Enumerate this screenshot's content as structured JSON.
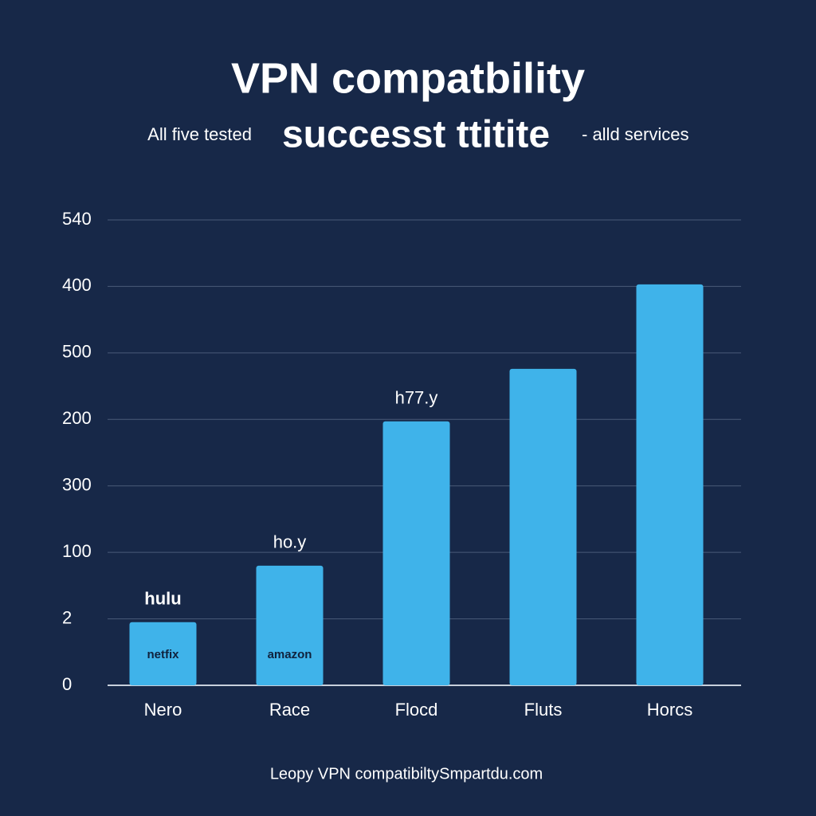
{
  "chart_data": {
    "type": "bar",
    "title": "VPN compatbility",
    "subtitle": [
      "All five tested",
      "successt ttitite",
      "- alld services"
    ],
    "footer": "Leopy VPN compatibiltySmpartdu.com",
    "categories": [
      "Nero",
      "Race",
      "Flocd",
      "Fluts",
      "Horcs"
    ],
    "values": [
      0.95,
      1.8,
      3.97,
      4.76,
      6.03
    ],
    "bar_labels": [
      "hulu",
      "ho.y",
      "h77.y",
      null,
      null
    ],
    "bar_logos": [
      "netfix",
      "amazon",
      null,
      null,
      null
    ],
    "color": "#3fb3ea",
    "ylim": [
      0,
      7
    ],
    "yticks": [
      {
        "value": 0,
        "label": "0"
      },
      {
        "value": 1,
        "label": "2"
      },
      {
        "value": 2,
        "label": "100"
      },
      {
        "value": 3,
        "label": "300"
      },
      {
        "value": 4,
        "label": "200"
      },
      {
        "value": 5,
        "label": "500"
      },
      {
        "value": 6,
        "label": "400"
      },
      {
        "value": 7,
        "label": "540"
      }
    ],
    "grid": true
  }
}
